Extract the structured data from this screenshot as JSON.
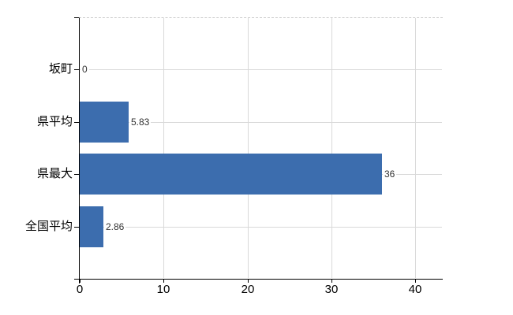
{
  "chart_data": {
    "type": "bar",
    "orientation": "horizontal",
    "categories": [
      "坂町",
      "県平均",
      "県最大",
      "全国平均"
    ],
    "values": [
      0,
      5.83,
      36,
      2.86
    ],
    "value_labels": [
      "0",
      "5.83",
      "36",
      "2.86"
    ],
    "xticks": [
      "0",
      "10",
      "20",
      "30",
      "40"
    ],
    "xtick_values": [
      0,
      10,
      20,
      30,
      40
    ],
    "xlim": [
      0,
      43.2
    ],
    "grid": true,
    "legend_position": "none",
    "colors": {
      "bar": "#3c6dae",
      "gridline": "#d9d9d9",
      "axis": "#000000",
      "tick_label": "#000000",
      "value_label": "#333333",
      "plot_top_border": "#c9c9c9",
      "background": "#ffffff"
    }
  }
}
